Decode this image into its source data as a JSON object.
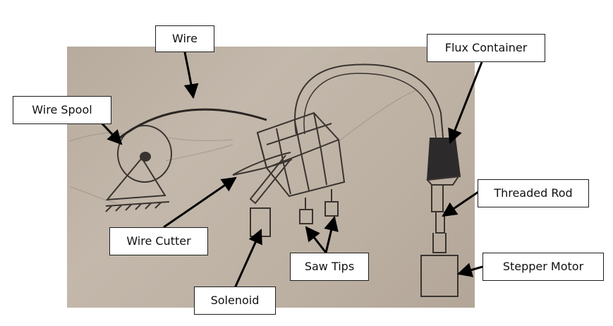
{
  "labels": {
    "wire": "Wire",
    "flux_container": "Flux Container",
    "wire_spool": "Wire Spool",
    "threaded_rod": "Threaded Rod",
    "wire_cutter": "Wire Cutter",
    "saw_tips": "Saw Tips",
    "stepper_motor": "Stepper Motor",
    "solenoid": "Solenoid"
  },
  "colors": {
    "paper": "#bcb0a2",
    "pencil": "#3a3430",
    "flux_shading": "#2c2a2a",
    "label_border": "#1c1c1c",
    "arrow": "#000000"
  }
}
